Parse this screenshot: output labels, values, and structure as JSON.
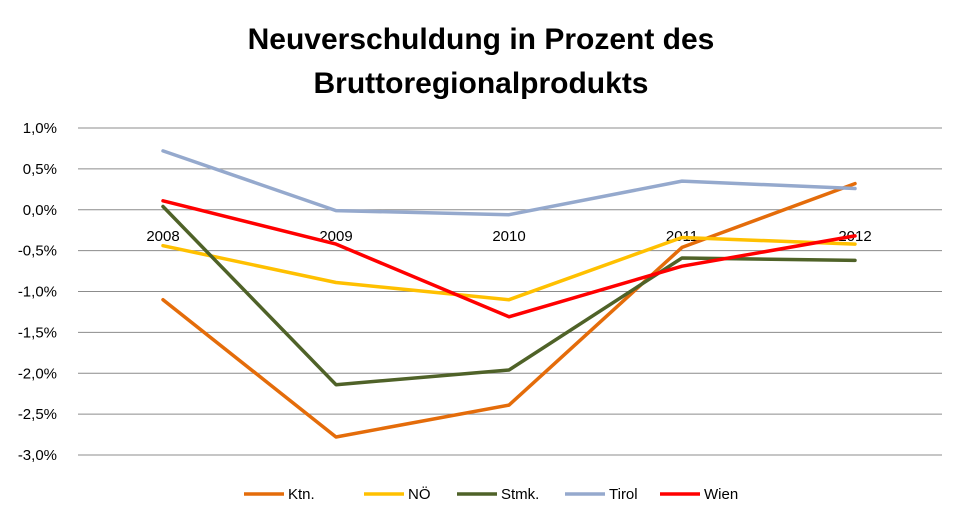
{
  "chart_data": {
    "type": "line",
    "title_lines": [
      "Neuverschuldung in Prozent des",
      "Bruttoregionalprodukts"
    ],
    "categories": [
      "2008",
      "2009",
      "2010",
      "2011",
      "2012"
    ],
    "ylim": [
      -3.0,
      1.0
    ],
    "yticks": [
      1.0,
      0.5,
      0.0,
      -0.5,
      -1.0,
      -1.5,
      -2.0,
      -2.5,
      -3.0
    ],
    "ytick_labels": [
      "1,0%",
      "0,5%",
      "0,0%",
      "-0,5%",
      "-1,0%",
      "-1,5%",
      "-2,0%",
      "-2,5%",
      "-3,0%"
    ],
    "grid": true,
    "legend_position": "bottom",
    "series": [
      {
        "name": "Ktn.",
        "color": "#E46C0A",
        "values": [
          -1.1,
          -2.78,
          -2.39,
          -0.46,
          0.32
        ]
      },
      {
        "name": "NÖ",
        "color": "#FFC000",
        "values": [
          -0.44,
          -0.89,
          -1.1,
          -0.34,
          -0.42
        ]
      },
      {
        "name": "Stmk.",
        "color": "#4F6228",
        "values": [
          0.04,
          -2.14,
          -1.96,
          -0.59,
          -0.62
        ]
      },
      {
        "name": "Tirol",
        "color": "#95A9CD",
        "values": [
          0.72,
          -0.01,
          -0.06,
          0.35,
          0.26
        ]
      },
      {
        "name": "Wien",
        "color": "#FF0000",
        "values": [
          0.11,
          -0.42,
          -1.31,
          -0.69,
          -0.32
        ]
      }
    ]
  }
}
